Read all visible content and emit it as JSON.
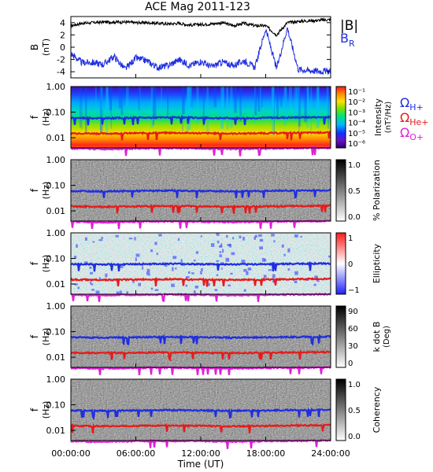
{
  "title": "ACE Mag 2011-123",
  "xlabel": "Time (UT)",
  "x_tick_labels": [
    "00:00:00",
    "06:00:00",
    "12:00:00",
    "18:00:00",
    "24:00:00"
  ],
  "panel_b": {
    "ylabel": "B",
    "yunit": "(nT)",
    "y_tick_labels": [
      "4",
      "2",
      "0",
      "-2",
      "-4"
    ],
    "legend_total": "|B|",
    "legend_radial": "B",
    "legend_radial_sub": "R"
  },
  "freq_axis": {
    "ylabel": "f",
    "yunit": "(Hz)",
    "y_tick_labels": [
      "1.00",
      "0.10",
      "0.01"
    ]
  },
  "panels": [
    {
      "id": "intensity",
      "colorbar_label": "Intensity",
      "colorbar_unit": "(nT²/Hz)",
      "colorbar_ticks": [
        "10⁻¹",
        "10⁻²",
        "10⁻³",
        "10⁻⁴",
        "10⁻⁵",
        "10⁻⁶"
      ]
    },
    {
      "id": "polarization",
      "colorbar_label": "% Polarization",
      "colorbar_unit": "",
      "colorbar_ticks": [
        "1.0",
        "0.5",
        "0.0"
      ]
    },
    {
      "id": "ellipticity",
      "colorbar_label": "Ellipticity",
      "colorbar_unit": "",
      "colorbar_ticks": [
        "1",
        "0",
        "−1"
      ]
    },
    {
      "id": "kdotb",
      "colorbar_label": "k dot B",
      "colorbar_unit": "(Deg)",
      "colorbar_ticks": [
        "90",
        "60",
        "30",
        "0"
      ]
    },
    {
      "id": "coherency",
      "colorbar_label": "Coherency",
      "colorbar_unit": "",
      "colorbar_ticks": [
        "1.0",
        "0.5",
        "0.0"
      ]
    }
  ],
  "gyro_legend": [
    {
      "label": "Ω",
      "sub": "H+",
      "color": "#1f2ee0"
    },
    {
      "label": "Ω",
      "sub": "He+",
      "color": "#e51b1b"
    },
    {
      "label": "Ω",
      "sub": "O+",
      "color": "#e020d6"
    }
  ],
  "colors": {
    "b_total": "#000000",
    "b_radial": "#1f2ee0",
    "h_plus": "#1f2ee0",
    "he_plus": "#e51b1b",
    "o_plus": "#e020d6"
  },
  "chart_data": [
    {
      "type": "line",
      "title": "ACE Mag 2011-123",
      "xlabel": "Time (UT)",
      "ylabel": "B (nT)",
      "x_range_hours": [
        0,
        24
      ],
      "ylim": [
        -5,
        5
      ],
      "x": [
        0,
        1,
        2,
        3,
        4,
        5,
        6,
        7,
        8,
        9,
        10,
        11,
        12,
        13,
        14,
        15,
        16,
        17,
        18,
        19,
        20,
        21,
        22,
        23,
        24
      ],
      "series": [
        {
          "name": "|B|",
          "values": [
            3.5,
            3.9,
            4.0,
            4.1,
            4.1,
            4.1,
            4.0,
            4.0,
            3.9,
            3.8,
            3.9,
            3.6,
            3.7,
            3.8,
            4.0,
            3.5,
            3.9,
            3.5,
            3.5,
            2.0,
            4.0,
            4.2,
            4.3,
            4.4,
            4.5
          ]
        },
        {
          "name": "B_R",
          "values": [
            -1.0,
            -2.5,
            -2.5,
            -2.8,
            -1.5,
            -3.6,
            -1.8,
            -2.2,
            -3.3,
            -3.0,
            -2.0,
            -3.0,
            -2.3,
            -3.2,
            -2.4,
            -3.0,
            -2.2,
            -3.3,
            3.0,
            -3.5,
            3.2,
            -3.6,
            -3.8,
            -3.9,
            -3.9
          ]
        }
      ]
    },
    {
      "type": "line",
      "title": "",
      "xlabel": "Time (UT)",
      "ylabel": "f (Hz)",
      "yscale": "log",
      "ylim": [
        0.004,
        1.0
      ],
      "x": [
        0,
        3,
        6,
        9,
        12,
        15,
        18,
        21,
        24
      ],
      "series": [
        {
          "name": "ΩH+",
          "values": [
            0.06,
            0.058,
            0.06,
            0.062,
            0.06,
            0.058,
            0.06,
            0.062,
            0.064
          ]
        },
        {
          "name": "ΩHe+",
          "values": [
            0.015,
            0.0145,
            0.015,
            0.0155,
            0.015,
            0.0145,
            0.015,
            0.0155,
            0.016
          ]
        },
        {
          "name": "ΩO+",
          "values": [
            0.0038,
            0.0036,
            0.0038,
            0.0039,
            0.0038,
            0.0036,
            0.0038,
            0.0039,
            0.004
          ]
        }
      ]
    }
  ]
}
